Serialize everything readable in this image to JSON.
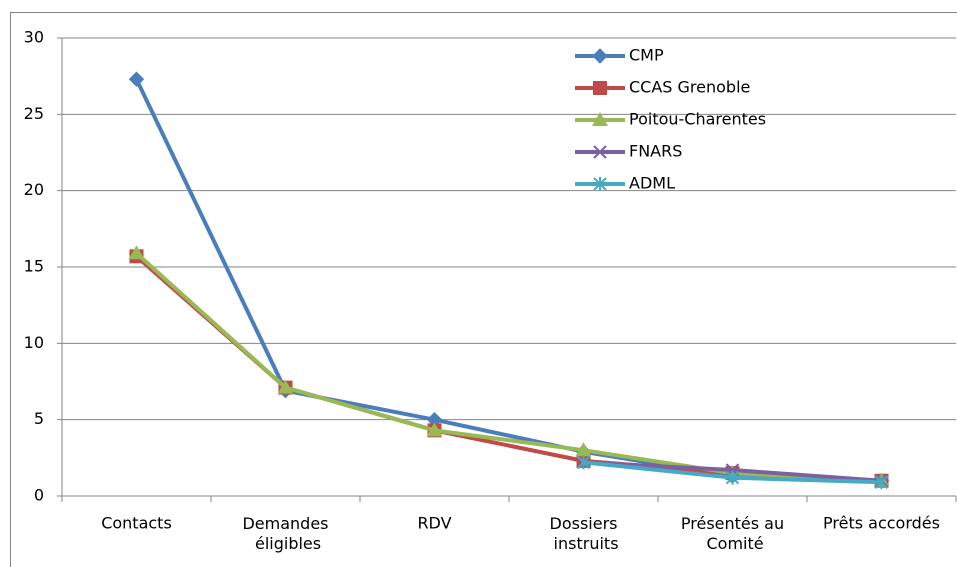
{
  "chart_data": {
    "type": "line",
    "categories": [
      "Contacts",
      "Demandes\néligibles",
      "RDV",
      "Dossiers\ninstruits",
      "Présentés au\nComité",
      "Prêts accordés"
    ],
    "ylim": [
      0,
      30
    ],
    "yticks": [
      0,
      5,
      10,
      15,
      20,
      25,
      30
    ],
    "grid": true,
    "legend": "upper right",
    "series": [
      {
        "name": "CMP",
        "color": "#4a7ebb",
        "marker": "diamond",
        "values": [
          27.3,
          6.9,
          5.0,
          2.9,
          1.3,
          1.0
        ]
      },
      {
        "name": "CCAS Grenoble",
        "color": "#be4b48",
        "marker": "square",
        "values": [
          15.7,
          7.1,
          4.3,
          2.3,
          1.5,
          1.0
        ]
      },
      {
        "name": "Poitou-Charentes",
        "color": "#98b954",
        "marker": "triangle",
        "values": [
          15.9,
          7.1,
          4.3,
          3.0,
          1.5,
          1.0
        ]
      },
      {
        "name": "FNARS",
        "color": "#7d60a0",
        "marker": "x",
        "values": [
          null,
          null,
          null,
          2.2,
          1.7,
          1.0
        ]
      },
      {
        "name": "ADML",
        "color": "#46aac5",
        "marker": "star",
        "values": [
          null,
          null,
          null,
          2.2,
          1.2,
          0.9
        ]
      }
    ]
  }
}
